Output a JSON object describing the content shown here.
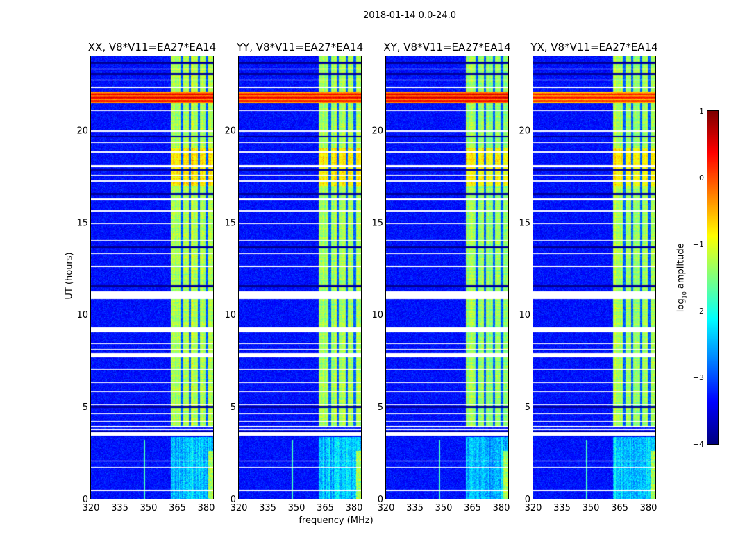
{
  "chart_data": {
    "type": "heatmap",
    "title": "2018-01-14 0.0-24.0",
    "xlabel": "frequency (MHz)",
    "ylabel": "UT (hours)",
    "xlim": [
      320,
      383.6
    ],
    "ylim": [
      0,
      24
    ],
    "xticks": [
      320,
      335,
      350,
      365,
      380
    ],
    "yticks": [
      0,
      5,
      10,
      15,
      20
    ],
    "panels": [
      {
        "title": "XX, V8*V11=EA27*EA14",
        "rfi_strength": 1.0,
        "red_band_strength": 1.0
      },
      {
        "title": "YY, V8*V11=EA27*EA14",
        "rfi_strength": 0.9,
        "red_band_strength": 0.9
      },
      {
        "title": "XY, V8*V11=EA27*EA14",
        "rfi_strength": 0.85,
        "red_band_strength": 1.1
      },
      {
        "title": "YX, V8*V11=EA27*EA14",
        "rfi_strength": 0.85,
        "red_band_strength": 0.7
      }
    ],
    "colorbar": {
      "label_main": "log",
      "label_sub": "10",
      "label_rest": " amplitude",
      "colormap": "jet",
      "range": [
        -4,
        1
      ],
      "ticks": [
        1,
        0,
        -1,
        -2,
        -3,
        -4
      ],
      "tick_labels": [
        "1",
        "0",
        "−1",
        "−2",
        "−3",
        "−4"
      ]
    },
    "features": {
      "background_log_amp": -3.3,
      "rfi_band_mhz": [
        361.5,
        383.6
      ],
      "rfi_gaps_mhz": [
        367.2,
        371.3,
        376.0,
        380.2
      ],
      "rfi_start_hour": 3.95,
      "low_period_end_hour": 3.35,
      "narrow_line_mhz": 347.5,
      "red_band_hours": [
        21.45,
        22.1
      ],
      "flag_hours": [
        [
          3.45,
          3.62
        ],
        [
          3.75,
          3.8
        ],
        [
          3.9,
          3.95
        ],
        [
          4.2,
          4.25
        ],
        [
          4.6,
          4.65
        ],
        [
          5.1,
          5.15
        ],
        [
          5.8,
          5.85
        ],
        [
          6.3,
          6.35
        ],
        [
          7.0,
          7.05
        ],
        [
          7.7,
          7.9
        ],
        [
          8.1,
          8.15
        ],
        [
          8.4,
          8.45
        ],
        [
          9.05,
          9.3
        ],
        [
          10.85,
          11.25
        ],
        [
          12.6,
          12.65
        ],
        [
          13.3,
          13.35
        ],
        [
          14.0,
          14.05
        ],
        [
          14.9,
          14.95
        ],
        [
          15.6,
          15.65
        ],
        [
          16.2,
          16.3
        ],
        [
          17.2,
          17.3
        ],
        [
          17.55,
          17.6
        ],
        [
          18.0,
          18.1
        ],
        [
          18.8,
          18.85
        ],
        [
          19.3,
          19.35
        ],
        [
          19.9,
          20.0
        ],
        [
          21.05,
          21.1
        ],
        [
          22.3,
          22.35
        ],
        [
          22.7,
          22.75
        ],
        [
          23.3,
          23.35
        ],
        [
          0.45,
          0.5
        ],
        [
          1.7,
          1.75
        ],
        [
          2.05,
          2.1
        ]
      ],
      "dark_hours": [
        [
          3.65,
          3.72
        ],
        [
          4.95,
          5.05
        ],
        [
          11.5,
          11.6
        ],
        [
          13.6,
          13.7
        ],
        [
          16.5,
          16.6
        ],
        [
          17.8,
          17.9
        ],
        [
          19.6,
          19.7
        ],
        [
          23.0,
          23.1
        ],
        [
          23.6,
          23.7
        ]
      ]
    }
  }
}
